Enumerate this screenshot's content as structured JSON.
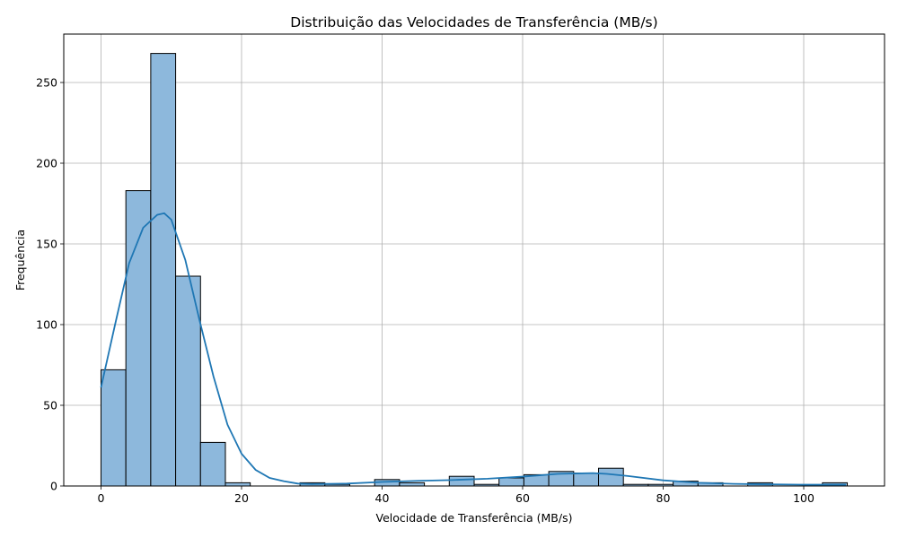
{
  "chart_data": {
    "type": "bar",
    "subtype": "histogram",
    "title": "Distribuição das Velocidades de Transferência (MB/s)",
    "xlabel": "Velocidade de Transferência (MB/s)",
    "ylabel": "Frequência",
    "xlim": [
      -5.3,
      111.5
    ],
    "ylim": [
      0,
      280
    ],
    "xticks": [
      0,
      20,
      40,
      60,
      80,
      100
    ],
    "yticks": [
      0,
      50,
      100,
      150,
      200,
      250
    ],
    "grid": true,
    "bin_width": 3.54,
    "bins": [
      {
        "start": 0.0,
        "end": 3.54,
        "count": 72
      },
      {
        "start": 3.54,
        "end": 7.08,
        "count": 183
      },
      {
        "start": 7.08,
        "end": 10.62,
        "count": 268
      },
      {
        "start": 10.62,
        "end": 14.16,
        "count": 130
      },
      {
        "start": 14.16,
        "end": 17.7,
        "count": 27
      },
      {
        "start": 17.7,
        "end": 21.24,
        "count": 2
      },
      {
        "start": 21.24,
        "end": 24.78,
        "count": 0
      },
      {
        "start": 24.78,
        "end": 28.32,
        "count": 0
      },
      {
        "start": 28.32,
        "end": 31.86,
        "count": 2
      },
      {
        "start": 31.86,
        "end": 35.4,
        "count": 1
      },
      {
        "start": 35.4,
        "end": 38.94,
        "count": 0
      },
      {
        "start": 38.94,
        "end": 42.48,
        "count": 4
      },
      {
        "start": 42.48,
        "end": 46.02,
        "count": 2
      },
      {
        "start": 46.02,
        "end": 49.56,
        "count": 0
      },
      {
        "start": 49.56,
        "end": 53.1,
        "count": 6
      },
      {
        "start": 53.1,
        "end": 56.64,
        "count": 1
      },
      {
        "start": 56.64,
        "end": 60.18,
        "count": 5
      },
      {
        "start": 60.18,
        "end": 63.72,
        "count": 7
      },
      {
        "start": 63.72,
        "end": 67.26,
        "count": 9
      },
      {
        "start": 67.26,
        "end": 70.8,
        "count": 8
      },
      {
        "start": 70.8,
        "end": 74.34,
        "count": 11
      },
      {
        "start": 74.34,
        "end": 77.88,
        "count": 1
      },
      {
        "start": 77.88,
        "end": 81.42,
        "count": 1
      },
      {
        "start": 81.42,
        "end": 84.96,
        "count": 3
      },
      {
        "start": 84.96,
        "end": 88.5,
        "count": 2
      },
      {
        "start": 88.5,
        "end": 92.04,
        "count": 0
      },
      {
        "start": 92.04,
        "end": 95.58,
        "count": 2
      },
      {
        "start": 95.58,
        "end": 99.12,
        "count": 0
      },
      {
        "start": 99.12,
        "end": 102.66,
        "count": 0
      },
      {
        "start": 102.66,
        "end": 106.2,
        "count": 2
      }
    ],
    "kde": {
      "x": [
        0,
        2,
        4,
        6,
        8,
        9,
        10,
        12,
        14,
        16,
        18,
        20,
        22,
        24,
        26,
        28,
        30,
        35,
        40,
        45,
        50,
        55,
        60,
        65,
        70,
        72,
        75,
        80,
        85,
        90,
        95,
        100,
        106
      ],
      "y": [
        61,
        100,
        138,
        160,
        168,
        169,
        165,
        140,
        103,
        68,
        38,
        20,
        10,
        5,
        3,
        1.5,
        1.2,
        1.5,
        2.5,
        3.2,
        3.7,
        4.5,
        5.8,
        7.5,
        8.0,
        7.5,
        6.2,
        3.5,
        2.0,
        1.3,
        1.0,
        0.8,
        0.8
      ]
    },
    "colors": {
      "bar_fill": "#8db8dc",
      "bar_edge": "#000000",
      "kde_line": "#1f77b4",
      "grid": "#b0b0b0"
    }
  }
}
